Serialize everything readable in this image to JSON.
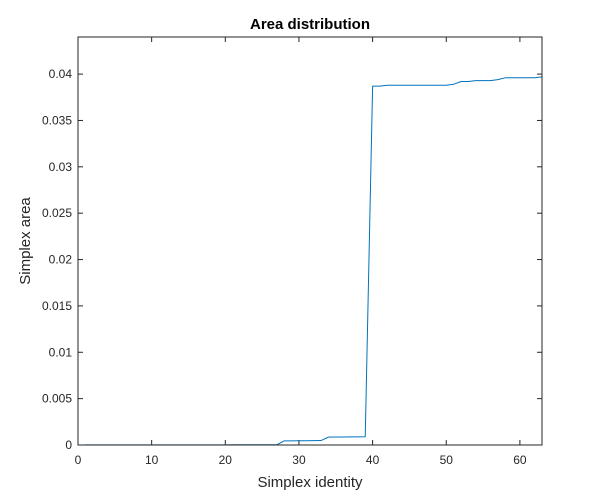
{
  "chart_data": {
    "type": "line",
    "title": "Area distribution",
    "xlabel": "Simplex identity",
    "ylabel": "Simplex area",
    "xlim": [
      0,
      63
    ],
    "ylim": [
      0,
      0.044
    ],
    "xticks": [
      0,
      10,
      20,
      30,
      40,
      50,
      60
    ],
    "xtick_labels": [
      "0",
      "10",
      "20",
      "30",
      "40",
      "50",
      "60"
    ],
    "yticks": [
      0,
      0.005,
      0.01,
      0.015,
      0.02,
      0.025,
      0.03,
      0.035,
      0.04
    ],
    "ytick_labels": [
      "0",
      "0.005",
      "0.01",
      "0.015",
      "0.02",
      "0.025",
      "0.03",
      "0.035",
      "0.04"
    ],
    "grid": false,
    "box": true,
    "series": [
      {
        "color": "#0072bd",
        "x": [
          1,
          2,
          3,
          4,
          5,
          6,
          7,
          8,
          9,
          10,
          11,
          12,
          13,
          14,
          15,
          16,
          17,
          18,
          19,
          20,
          21,
          22,
          23,
          24,
          25,
          26,
          27,
          28,
          29,
          30,
          31,
          32,
          33,
          34,
          35,
          36,
          37,
          38,
          39,
          40,
          41,
          42,
          43,
          44,
          45,
          46,
          47,
          48,
          49,
          50,
          51,
          52,
          53,
          54,
          55,
          56,
          57,
          58,
          59,
          60,
          61,
          62,
          63
        ],
        "y": [
          1e-05,
          1e-05,
          1e-05,
          1e-05,
          1e-05,
          1e-05,
          1e-05,
          1e-05,
          1e-05,
          1e-05,
          1e-05,
          1e-05,
          1e-05,
          1e-05,
          1e-05,
          1e-05,
          1e-05,
          1e-05,
          1e-05,
          1e-05,
          2e-05,
          2e-05,
          2e-05,
          2e-05,
          2e-05,
          2e-05,
          2e-05,
          0.00045,
          0.00045,
          0.00046,
          0.00046,
          0.00047,
          0.00048,
          0.00085,
          0.00086,
          0.00086,
          0.00087,
          0.00088,
          0.00089,
          0.0387,
          0.0387,
          0.0388,
          0.0388,
          0.0388,
          0.0388,
          0.0388,
          0.0388,
          0.0388,
          0.0388,
          0.0388,
          0.0389,
          0.0392,
          0.0392,
          0.0393,
          0.0393,
          0.0393,
          0.0394,
          0.0396,
          0.0396,
          0.0396,
          0.0396,
          0.0396,
          0.0397
        ]
      }
    ]
  }
}
